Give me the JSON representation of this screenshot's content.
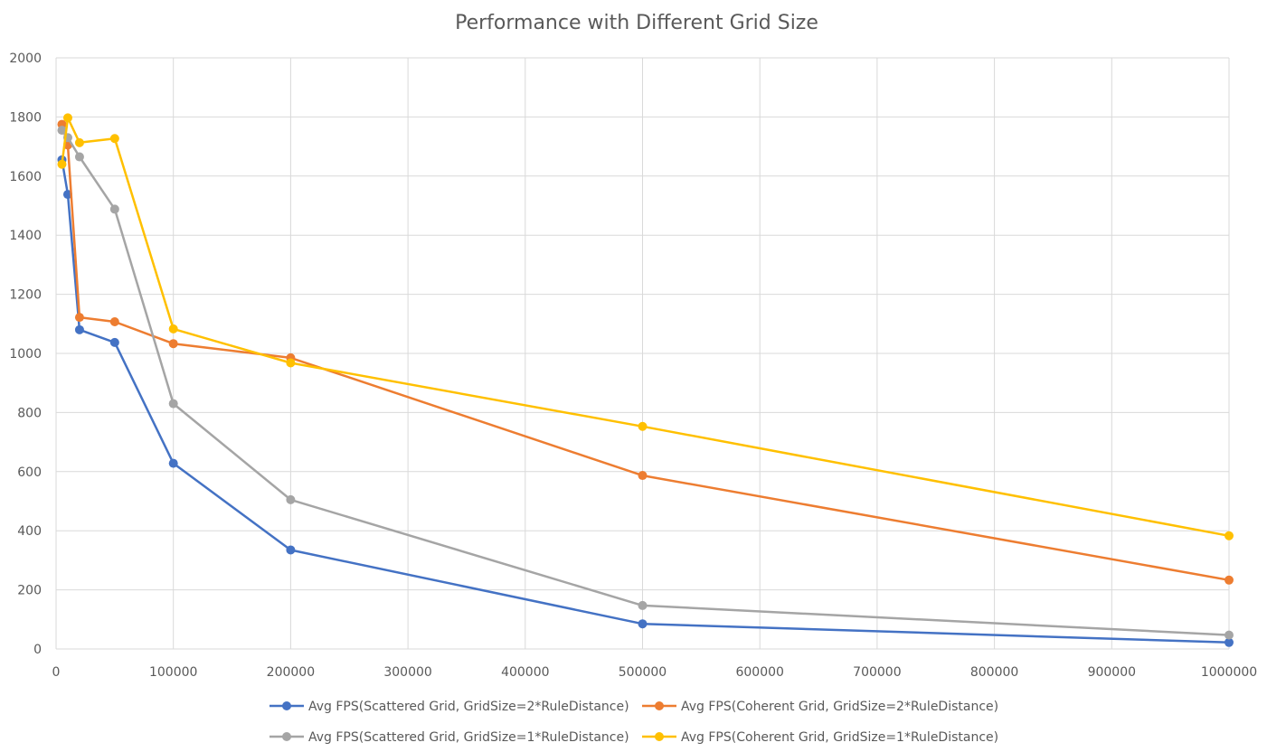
{
  "chart_data": {
    "type": "line",
    "title": "Performance with Different Grid Size",
    "xlabel": "",
    "ylabel": "",
    "xlim": [
      0,
      1000000
    ],
    "ylim": [
      0,
      2000
    ],
    "x_ticks": [
      0,
      100000,
      200000,
      300000,
      400000,
      500000,
      600000,
      700000,
      800000,
      900000,
      1000000
    ],
    "y_ticks": [
      0,
      200,
      400,
      600,
      800,
      1000,
      1200,
      1400,
      1600,
      1800,
      2000
    ],
    "grid": true,
    "legend_position": "bottom",
    "series": [
      {
        "name": "Avg FPS(Scattered Grid, GridSize=2*RuleDistance)",
        "color": "#4472c4",
        "x": [
          5000,
          10000,
          20000,
          50000,
          100000,
          200000,
          500000,
          1000000
        ],
        "y": [
          1655,
          1538,
          1080,
          1037,
          628,
          335,
          85,
          22
        ]
      },
      {
        "name": "Avg FPS(Coherent Grid, GridSize=2*RuleDistance)",
        "color": "#ed7d31",
        "x": [
          5000,
          10000,
          20000,
          50000,
          100000,
          200000,
          500000,
          1000000
        ],
        "y": [
          1775,
          1705,
          1122,
          1107,
          1033,
          985,
          587,
          233
        ]
      },
      {
        "name": "Avg FPS(Scattered Grid, GridSize=1*RuleDistance)",
        "color": "#a5a5a5",
        "x": [
          5000,
          10000,
          20000,
          50000,
          100000,
          200000,
          500000,
          1000000
        ],
        "y": [
          1755,
          1730,
          1665,
          1488,
          830,
          505,
          147,
          47
        ]
      },
      {
        "name": "Avg FPS(Coherent Grid, GridSize=1*RuleDistance)",
        "color": "#ffc000",
        "x": [
          5000,
          10000,
          20000,
          50000,
          100000,
          200000,
          500000,
          1000000
        ],
        "y": [
          1640,
          1797,
          1713,
          1727,
          1083,
          968,
          753,
          383
        ]
      }
    ]
  }
}
